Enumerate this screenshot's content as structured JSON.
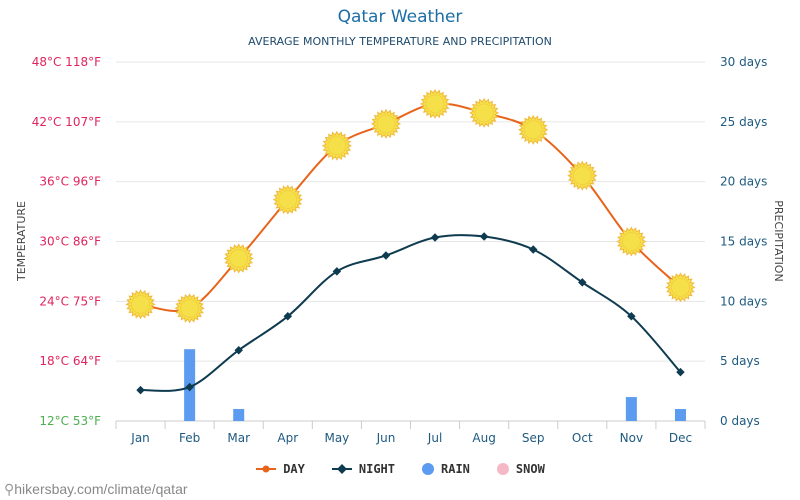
{
  "title": "Qatar Weather",
  "subtitle": "AVERAGE MONTHLY TEMPERATURE AND PRECIPITATION",
  "watermark": "hikersbay.com/climate/qatar",
  "colors": {
    "day": "#e8641b",
    "night": "#0f3b50",
    "rain": "#5b9bf0",
    "snow": "#f5b8c6",
    "sun": "#f5e04a",
    "sun_edge": "#f0b93a"
  },
  "chart_data": {
    "type": "line",
    "categories": [
      "Jan",
      "Feb",
      "Mar",
      "Apr",
      "May",
      "Jun",
      "Jul",
      "Aug",
      "Sep",
      "Oct",
      "Nov",
      "Dec"
    ],
    "ylabel_left": "TEMPERATURE",
    "ylabel_right": "PRECIPITATION",
    "ylim_left": [
      12,
      48
    ],
    "ylim_right": [
      0,
      30
    ],
    "left_ticks": [
      {
        "c": 48,
        "label": "48°C 118°F",
        "color": "#e0245e"
      },
      {
        "c": 42,
        "label": "42°C 107°F",
        "color": "#e0245e"
      },
      {
        "c": 36,
        "label": "36°C 96°F",
        "color": "#e0245e"
      },
      {
        "c": 30,
        "label": "30°C 86°F",
        "color": "#e0245e"
      },
      {
        "c": 24,
        "label": "24°C 75°F",
        "color": "#e0245e"
      },
      {
        "c": 18,
        "label": "18°C 64°F",
        "color": "#e0245e"
      },
      {
        "c": 12,
        "label": "12°C 53°F",
        "color": "#4caf50"
      }
    ],
    "right_ticks": [
      {
        "v": 30,
        "label": "30 days"
      },
      {
        "v": 25,
        "label": "25 days"
      },
      {
        "v": 20,
        "label": "20 days"
      },
      {
        "v": 15,
        "label": "15 days"
      },
      {
        "v": 10,
        "label": "10 days"
      },
      {
        "v": 5,
        "label": "5 days"
      },
      {
        "v": 0,
        "label": "0 days"
      }
    ],
    "series": [
      {
        "name": "DAY",
        "values": [
          23.7,
          23.3,
          28.3,
          34.2,
          39.6,
          41.8,
          43.8,
          42.9,
          41.2,
          36.6,
          30.0,
          25.4
        ]
      },
      {
        "name": "NIGHT",
        "values": [
          15.1,
          15.4,
          19.1,
          22.5,
          27.0,
          28.6,
          30.4,
          30.5,
          29.2,
          25.9,
          22.5,
          16.9
        ]
      },
      {
        "name": "RAIN",
        "values": [
          0,
          6,
          1,
          0,
          0,
          0,
          0,
          0,
          0,
          0,
          2,
          1
        ]
      },
      {
        "name": "SNOW",
        "values": [
          0,
          0,
          0,
          0,
          0,
          0,
          0,
          0,
          0,
          0,
          0,
          0
        ]
      }
    ],
    "grid": true,
    "legend": "bottom-center"
  }
}
